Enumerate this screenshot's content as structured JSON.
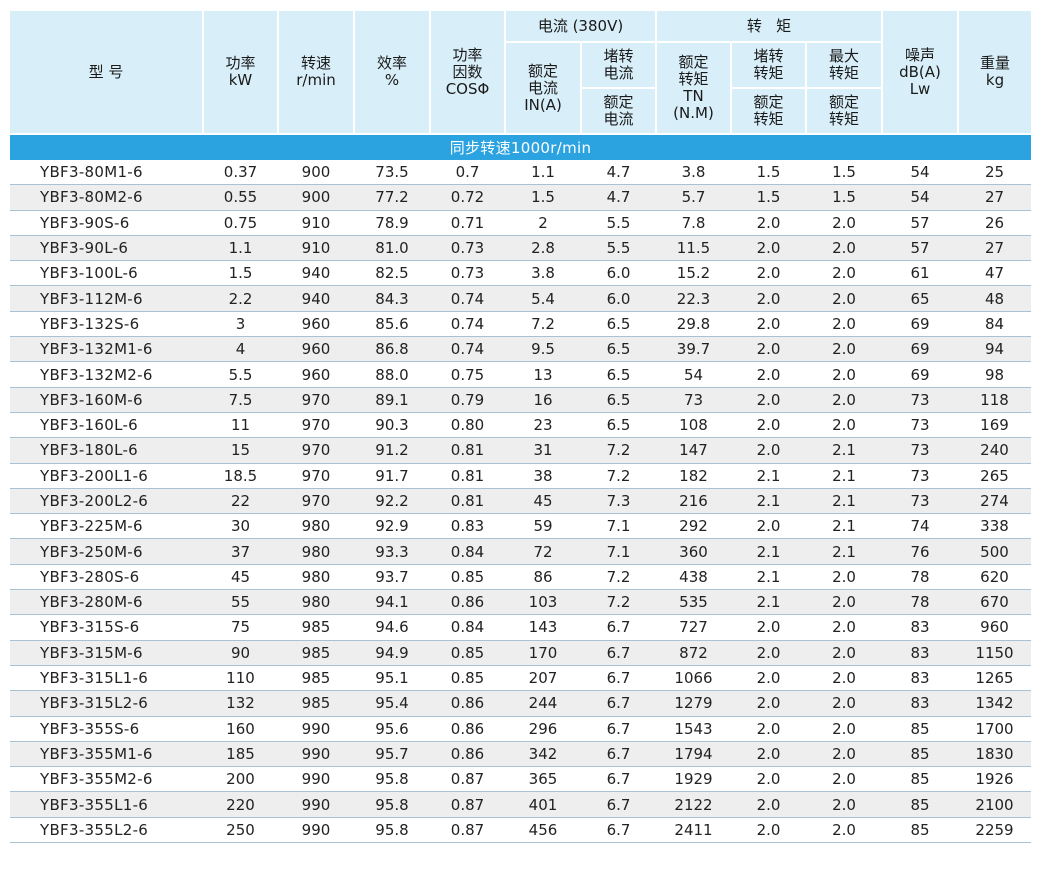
{
  "header": {
    "model": "型  号",
    "power": "功率\nkW",
    "speed": "转速\nr/min",
    "efficiency": "效率\n%",
    "power_factor": "功率\n因数\nCOSΦ",
    "current_group": "电流 (380V)",
    "rated_current": "额定\n电流\nIN(A)",
    "locked_current": "堵转\n电流",
    "locked_current_ratio": "额定\n电流",
    "torque_group": "转   矩",
    "rated_torque": "额定\n转矩\nTN\n(N.M)",
    "locked_torque": "堵转\n转矩",
    "locked_torque_ratio": "额定\n转矩",
    "max_torque": "最大\n转矩",
    "max_torque_ratio": "额定\n转矩",
    "noise": "噪声\ndB(A)\nLw",
    "weight": "重量\nkg"
  },
  "section_title": "同步转速1000r/min",
  "rows": [
    [
      "YBF3-80M1-6",
      "0.37",
      "900",
      "73.5",
      "0.7",
      "1.1",
      "4.7",
      "3.8",
      "1.5",
      "1.5",
      "54",
      "25"
    ],
    [
      "YBF3-80M2-6",
      "0.55",
      "900",
      "77.2",
      "0.72",
      "1.5",
      "4.7",
      "5.7",
      "1.5",
      "1.5",
      "54",
      "27"
    ],
    [
      "YBF3-90S-6",
      "0.75",
      "910",
      "78.9",
      "0.71",
      "2",
      "5.5",
      "7.8",
      "2.0",
      "2.0",
      "57",
      "26"
    ],
    [
      "YBF3-90L-6",
      "1.1",
      "910",
      "81.0",
      "0.73",
      "2.8",
      "5.5",
      "11.5",
      "2.0",
      "2.0",
      "57",
      "27"
    ],
    [
      "YBF3-100L-6",
      "1.5",
      "940",
      "82.5",
      "0.73",
      "3.8",
      "6.0",
      "15.2",
      "2.0",
      "2.0",
      "61",
      "47"
    ],
    [
      "YBF3-112M-6",
      "2.2",
      "940",
      "84.3",
      "0.74",
      "5.4",
      "6.0",
      "22.3",
      "2.0",
      "2.0",
      "65",
      "48"
    ],
    [
      "YBF3-132S-6",
      "3",
      "960",
      "85.6",
      "0.74",
      "7.2",
      "6.5",
      "29.8",
      "2.0",
      "2.0",
      "69",
      "84"
    ],
    [
      "YBF3-132M1-6",
      "4",
      "960",
      "86.8",
      "0.74",
      "9.5",
      "6.5",
      "39.7",
      "2.0",
      "2.0",
      "69",
      "94"
    ],
    [
      "YBF3-132M2-6",
      "5.5",
      "960",
      "88.0",
      "0.75",
      "13",
      "6.5",
      "54",
      "2.0",
      "2.0",
      "69",
      "98"
    ],
    [
      "YBF3-160M-6",
      "7.5",
      "970",
      "89.1",
      "0.79",
      "16",
      "6.5",
      "73",
      "2.0",
      "2.0",
      "73",
      "118"
    ],
    [
      "YBF3-160L-6",
      "11",
      "970",
      "90.3",
      "0.80",
      "23",
      "6.5",
      "108",
      "2.0",
      "2.0",
      "73",
      "169"
    ],
    [
      "YBF3-180L-6",
      "15",
      "970",
      "91.2",
      "0.81",
      "31",
      "7.2",
      "147",
      "2.0",
      "2.1",
      "73",
      "240"
    ],
    [
      "YBF3-200L1-6",
      "18.5",
      "970",
      "91.7",
      "0.81",
      "38",
      "7.2",
      "182",
      "2.1",
      "2.1",
      "73",
      "265"
    ],
    [
      "YBF3-200L2-6",
      "22",
      "970",
      "92.2",
      "0.81",
      "45",
      "7.3",
      "216",
      "2.1",
      "2.1",
      "73",
      "274"
    ],
    [
      "YBF3-225M-6",
      "30",
      "980",
      "92.9",
      "0.83",
      "59",
      "7.1",
      "292",
      "2.0",
      "2.1",
      "74",
      "338"
    ],
    [
      "YBF3-250M-6",
      "37",
      "980",
      "93.3",
      "0.84",
      "72",
      "7.1",
      "360",
      "2.1",
      "2.1",
      "76",
      "500"
    ],
    [
      "YBF3-280S-6",
      "45",
      "980",
      "93.7",
      "0.85",
      "86",
      "7.2",
      "438",
      "2.1",
      "2.0",
      "78",
      "620"
    ],
    [
      "YBF3-280M-6",
      "55",
      "980",
      "94.1",
      "0.86",
      "103",
      "7.2",
      "535",
      "2.1",
      "2.0",
      "78",
      "670"
    ],
    [
      "YBF3-315S-6",
      "75",
      "985",
      "94.6",
      "0.84",
      "143",
      "6.7",
      "727",
      "2.0",
      "2.0",
      "83",
      "960"
    ],
    [
      "YBF3-315M-6",
      "90",
      "985",
      "94.9",
      "0.85",
      "170",
      "6.7",
      "872",
      "2.0",
      "2.0",
      "83",
      "1150"
    ],
    [
      "YBF3-315L1-6",
      "110",
      "985",
      "95.1",
      "0.85",
      "207",
      "6.7",
      "1066",
      "2.0",
      "2.0",
      "83",
      "1265"
    ],
    [
      "YBF3-315L2-6",
      "132",
      "985",
      "95.4",
      "0.86",
      "244",
      "6.7",
      "1279",
      "2.0",
      "2.0",
      "83",
      "1342"
    ],
    [
      "YBF3-355S-6",
      "160",
      "990",
      "95.6",
      "0.86",
      "296",
      "6.7",
      "1543",
      "2.0",
      "2.0",
      "85",
      "1700"
    ],
    [
      "YBF3-355M1-6",
      "185",
      "990",
      "95.7",
      "0.86",
      "342",
      "6.7",
      "1794",
      "2.0",
      "2.0",
      "85",
      "1830"
    ],
    [
      "YBF3-355M2-6",
      "200",
      "990",
      "95.8",
      "0.87",
      "365",
      "6.7",
      "1929",
      "2.0",
      "2.0",
      "85",
      "1926"
    ],
    [
      "YBF3-355L1-6",
      "220",
      "990",
      "95.8",
      "0.87",
      "401",
      "6.7",
      "2122",
      "2.0",
      "2.0",
      "85",
      "2100"
    ],
    [
      "YBF3-355L2-6",
      "250",
      "990",
      "95.8",
      "0.87",
      "456",
      "6.7",
      "2411",
      "2.0",
      "2.0",
      "85",
      "2259"
    ]
  ],
  "colors": {
    "header_bg": "#d8eef8",
    "banner_bg": "#2ba3e0",
    "row_alt": "#eeeeee",
    "row_line": "#a9c2d3"
  }
}
